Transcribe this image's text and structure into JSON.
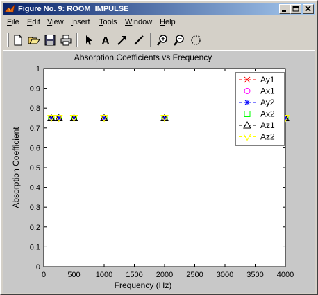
{
  "window": {
    "title": "Figure No. 9: ROOM_IMPULSE",
    "buttons": [
      "minimize",
      "maximize",
      "close"
    ]
  },
  "menu": [
    {
      "label": "File",
      "key": "F"
    },
    {
      "label": "Edit",
      "key": "E"
    },
    {
      "label": "View",
      "key": "V"
    },
    {
      "label": "Insert",
      "key": "I"
    },
    {
      "label": "Tools",
      "key": "T"
    },
    {
      "label": "Window",
      "key": "W"
    },
    {
      "label": "Help",
      "key": "H"
    }
  ],
  "toolbar": {
    "icons": [
      "new-file-icon",
      "open-folder-icon",
      "save-disk-icon",
      "print-icon",
      "select-arrow-icon",
      "insert-text-icon",
      "insert-arrow-icon",
      "insert-line-icon",
      "zoom-in-icon",
      "zoom-out-icon",
      "rotate-3d-icon"
    ]
  },
  "chart_data": {
    "type": "line",
    "title": "Absorption Coefficients vs Frequency",
    "xlabel": "Frequency (Hz)",
    "ylabel": "Absorption Coefficient",
    "xlim": [
      0,
      4000
    ],
    "ylim": [
      0,
      1
    ],
    "xticks": [
      0,
      500,
      1000,
      1500,
      2000,
      2500,
      3000,
      3500,
      4000
    ],
    "yticks": [
      0,
      0.1,
      0.2,
      0.3,
      0.4,
      0.5,
      0.6,
      0.7,
      0.8,
      0.9,
      1
    ],
    "x": [
      125,
      250,
      500,
      1000,
      2000,
      4000
    ],
    "grid": false,
    "legend_position": "top-right",
    "series": [
      {
        "name": "Ay1",
        "values": [
          0.75,
          0.75,
          0.75,
          0.75,
          0.75,
          0.75
        ],
        "color": "#ff0000",
        "marker": "x"
      },
      {
        "name": "Ax1",
        "values": [
          0.75,
          0.75,
          0.75,
          0.75,
          0.75,
          0.75
        ],
        "color": "#ff00ff",
        "marker": "o"
      },
      {
        "name": "Ay2",
        "values": [
          0.75,
          0.75,
          0.75,
          0.75,
          0.75,
          0.75
        ],
        "color": "#0000ff",
        "marker": "*"
      },
      {
        "name": "Ax2",
        "values": [
          0.75,
          0.75,
          0.75,
          0.75,
          0.75,
          0.75
        ],
        "color": "#00ff00",
        "marker": "s"
      },
      {
        "name": "Az1",
        "values": [
          0.75,
          0.75,
          0.75,
          0.75,
          0.75,
          0.75
        ],
        "color": "#000000",
        "marker": "^"
      },
      {
        "name": "Az2",
        "values": [
          0.75,
          0.75,
          0.75,
          0.75,
          0.75,
          0.75
        ],
        "color": "#ffff00",
        "marker": "v"
      }
    ]
  }
}
